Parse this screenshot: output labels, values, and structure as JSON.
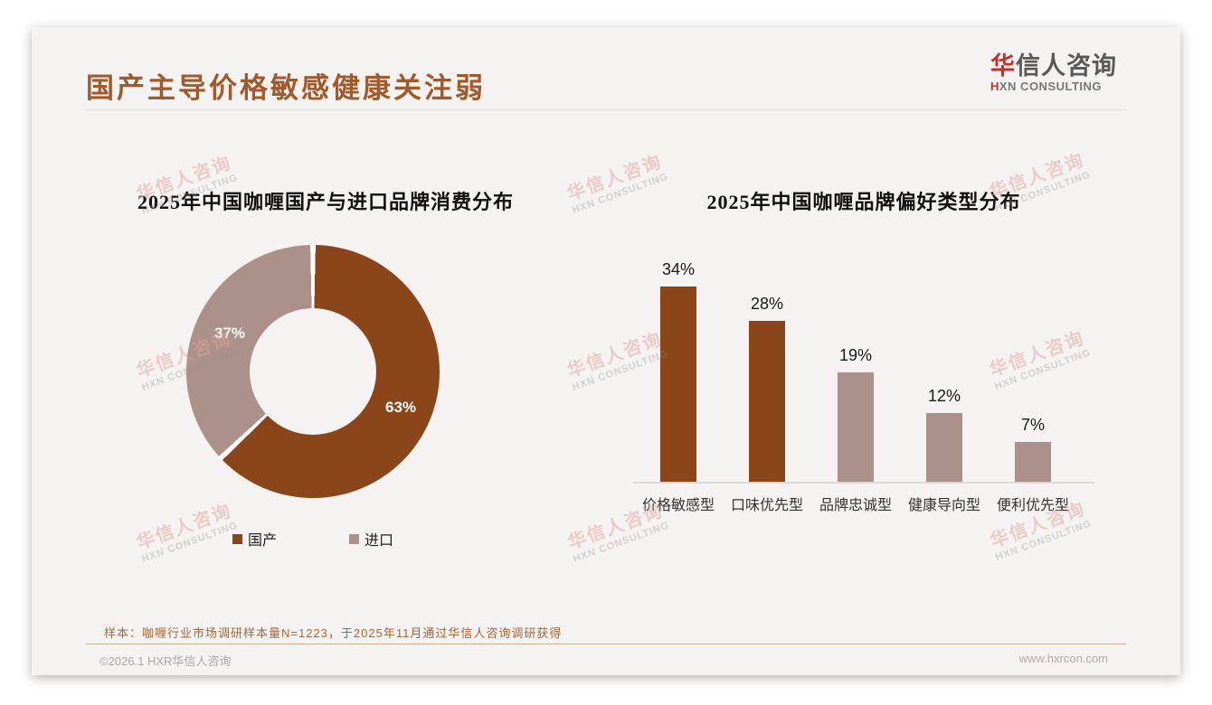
{
  "slide": {
    "title": "国产主导价格敏感健康关注弱",
    "logo": {
      "cn_first": "华",
      "cn_rest": "信人咨询",
      "en_first": "H",
      "en_rest": "XN CONSULTING"
    },
    "footnote": "样本：咖喱行业市场调研样本量N=1223，于2025年11月通过华信人咨询调研获得",
    "copyright": "©2026.1 HXR华信人咨询",
    "website": "www.hxrcon.com",
    "watermark": {
      "line1": "华信人咨询",
      "line2": "HXN CONSULTING"
    }
  },
  "colors": {
    "primary_brown": "#8A4619",
    "secondary_mauve": "#AB9189",
    "title_text": "#A15B2B"
  },
  "chart_data": [
    {
      "type": "pie",
      "donut": true,
      "title": "2025年中国咖喱国产与进口品牌消费分布",
      "segments": [
        {
          "name": "国产",
          "value": 63,
          "label": "63%",
          "color": "#8A4619"
        },
        {
          "name": "进口",
          "value": 37,
          "label": "37%",
          "color": "#AB9189"
        }
      ],
      "legend_position": "bottom",
      "start_angle_deg": 0,
      "direction": "clockwise"
    },
    {
      "type": "bar",
      "title": "2025年中国咖喱品牌偏好类型分布",
      "categories": [
        "价格敏感型",
        "口味优先型",
        "品牌忠诚型",
        "健康导向型",
        "便利优先型"
      ],
      "values": [
        34,
        28,
        19,
        12,
        7
      ],
      "labels": [
        "34%",
        "28%",
        "19%",
        "12%",
        "7%"
      ],
      "bar_colors": [
        "#8A4619",
        "#8A4619",
        "#AB9189",
        "#AB9189",
        "#AB9189"
      ],
      "ylim": [
        0,
        40
      ],
      "grid": false,
      "axis_line": true,
      "value_labels_position": "above"
    }
  ]
}
